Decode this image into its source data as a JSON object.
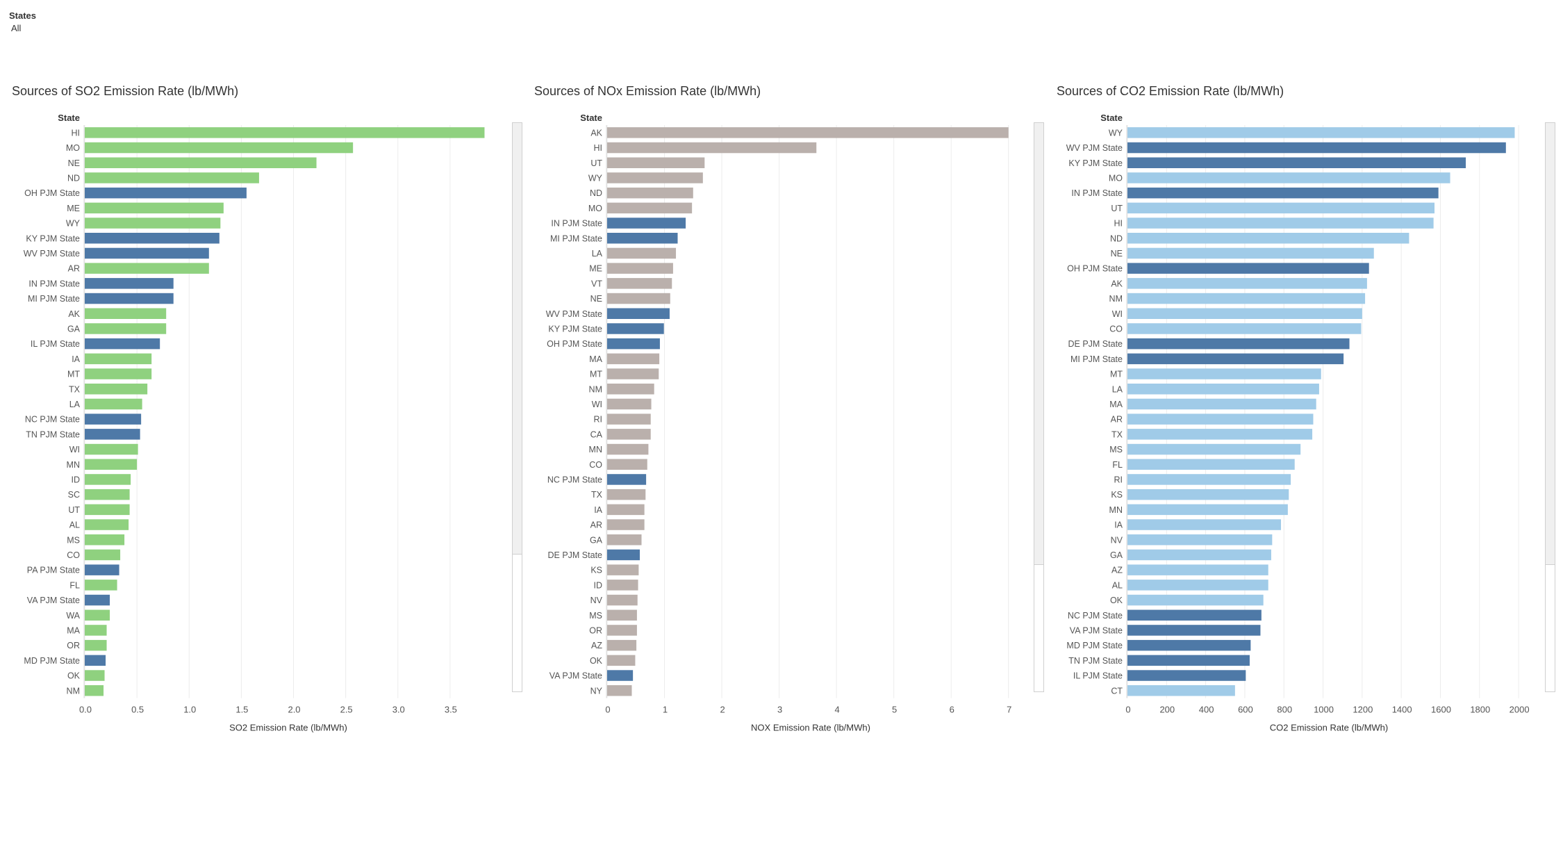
{
  "filter": {
    "title": "States",
    "value": "All"
  },
  "colors": {
    "pjm": "#4e79a7",
    "so2": "#8fd17f",
    "nox": "#bab0ac",
    "co2": "#a0cbe8",
    "grid": "#ececec"
  },
  "chart_data": [
    {
      "type": "bar",
      "orientation": "horizontal",
      "title": "Sources of SO2 Emission Rate (lb/MWh)",
      "category_header": "State",
      "xlabel": "SO2 Emission Rate (lb/MWh)",
      "xlim": [
        0,
        3.9
      ],
      "ticks": [
        0.0,
        0.5,
        1.0,
        1.5,
        2.0,
        2.5,
        3.0,
        3.5
      ],
      "tick_labels": [
        "0.0",
        "0.5",
        "1.0",
        "1.5",
        "2.0",
        "2.5",
        "3.0",
        "3.5"
      ],
      "grid": true,
      "base_color": "so2",
      "categories": [
        "HI",
        "MO",
        "NE",
        "ND",
        "OH PJM State",
        "ME",
        "WY",
        "KY PJM State",
        "WV PJM State",
        "AR",
        "IN PJM State",
        "MI PJM State",
        "AK",
        "GA",
        "IL PJM State",
        "IA",
        "MT",
        "TX",
        "LA",
        "NC PJM State",
        "TN PJM State",
        "WI",
        "MN",
        "ID",
        "SC",
        "UT",
        "AL",
        "MS",
        "CO",
        "PA PJM State",
        "FL",
        "VA PJM State",
        "WA",
        "MA",
        "OR",
        "MD PJM State",
        "OK",
        "NM"
      ],
      "values": [
        3.83,
        2.57,
        2.22,
        1.67,
        1.55,
        1.33,
        1.3,
        1.29,
        1.19,
        1.19,
        0.85,
        0.85,
        0.78,
        0.78,
        0.72,
        0.64,
        0.64,
        0.6,
        0.55,
        0.54,
        0.53,
        0.51,
        0.5,
        0.44,
        0.43,
        0.43,
        0.42,
        0.38,
        0.34,
        0.33,
        0.31,
        0.24,
        0.24,
        0.21,
        0.21,
        0.2,
        0.19,
        0.18
      ]
    },
    {
      "type": "bar",
      "orientation": "horizontal",
      "title": "Sources of NOx Emission Rate (lb/MWh)",
      "category_header": "State",
      "xlabel": "NOX Emission Rate (lb/MWh)",
      "xlim": [
        0,
        7.1
      ],
      "ticks": [
        0,
        1,
        2,
        3,
        4,
        5,
        6,
        7
      ],
      "tick_labels": [
        "0",
        "1",
        "2",
        "3",
        "4",
        "5",
        "6",
        "7"
      ],
      "grid": true,
      "base_color": "nox",
      "categories": [
        "AK",
        "HI",
        "UT",
        "WY",
        "ND",
        "MO",
        "IN PJM State",
        "MI PJM State",
        "LA",
        "ME",
        "VT",
        "NE",
        "WV PJM State",
        "KY PJM State",
        "OH PJM State",
        "MA",
        "MT",
        "NM",
        "WI",
        "RI",
        "CA",
        "MN",
        "CO",
        "NC PJM State",
        "TX",
        "IA",
        "AR",
        "GA",
        "DE PJM State",
        "KS",
        "ID",
        "NV",
        "MS",
        "OR",
        "AZ",
        "OK",
        "VA PJM State",
        "NY"
      ],
      "values": [
        7.0,
        3.65,
        1.7,
        1.67,
        1.5,
        1.48,
        1.37,
        1.23,
        1.2,
        1.15,
        1.13,
        1.1,
        1.09,
        0.99,
        0.92,
        0.91,
        0.9,
        0.82,
        0.77,
        0.76,
        0.76,
        0.72,
        0.7,
        0.68,
        0.67,
        0.65,
        0.65,
        0.6,
        0.57,
        0.55,
        0.54,
        0.53,
        0.52,
        0.52,
        0.51,
        0.49,
        0.45,
        0.43
      ]
    },
    {
      "type": "bar",
      "orientation": "horizontal",
      "title": "Sources of CO2 Emission Rate (lb/MWh)",
      "category_header": "State",
      "xlabel": "CO2 Emission Rate (lb/MWh)",
      "xlim": [
        0,
        2060
      ],
      "ticks": [
        0,
        200,
        400,
        600,
        800,
        1000,
        1200,
        1400,
        1600,
        1800,
        2000
      ],
      "tick_labels": [
        "0",
        "200",
        "400",
        "600",
        "800",
        "1000",
        "1200",
        "1400",
        "1600",
        "1800",
        "2000"
      ],
      "grid": true,
      "base_color": "co2",
      "categories": [
        "WY",
        "WV PJM State",
        "KY PJM State",
        "MO",
        "IN PJM State",
        "UT",
        "HI",
        "ND",
        "NE",
        "OH PJM State",
        "AK",
        "NM",
        "WI",
        "CO",
        "DE PJM State",
        "MI PJM State",
        "MT",
        "LA",
        "MA",
        "AR",
        "TX",
        "MS",
        "FL",
        "RI",
        "KS",
        "MN",
        "IA",
        "NV",
        "GA",
        "AZ",
        "AL",
        "OK",
        "NC PJM State",
        "VA PJM State",
        "MD PJM State",
        "TN PJM State",
        "IL PJM State",
        "CT"
      ],
      "values": [
        1980,
        1935,
        1730,
        1650,
        1590,
        1570,
        1565,
        1440,
        1260,
        1235,
        1225,
        1215,
        1200,
        1195,
        1135,
        1105,
        990,
        980,
        965,
        950,
        945,
        885,
        855,
        835,
        825,
        820,
        785,
        740,
        735,
        720,
        720,
        695,
        685,
        680,
        630,
        625,
        605,
        550
      ]
    }
  ]
}
